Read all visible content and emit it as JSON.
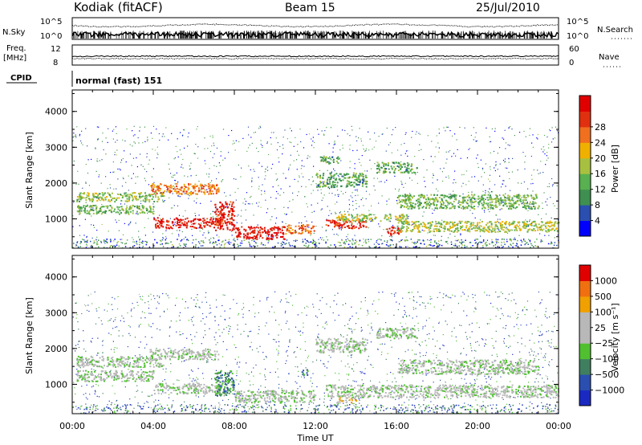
{
  "header": {
    "station": "Kodiak (fitACF)",
    "beam": "Beam 15",
    "date": "25/Jul/2010"
  },
  "top_panels": {
    "nsky_label": "N.Sky",
    "nsky_ticks": [
      "10^5",
      "10^0"
    ],
    "nsearch_label": "N.Search",
    "nsearch_ticks": [
      "10^5",
      "10^0"
    ],
    "freq_label_1": "Freq.",
    "freq_label_2": "[MHz]",
    "freq_ticks": [
      "12",
      "8"
    ],
    "nave_label": "Nave",
    "nave_ticks": [
      "60",
      "0"
    ],
    "cpid_label": "CPID",
    "cpid_value": "normal (fast) 151"
  },
  "colors": {
    "power_scale": [
      "#0000ff",
      "#2a4fb0",
      "#3f8f50",
      "#58b050",
      "#a8c040",
      "#f0b000",
      "#f07020",
      "#e03010",
      "#e00000"
    ],
    "velocity_scale": [
      "#1a2ac0",
      "#2a4fb0",
      "#3f7f60",
      "#50c030",
      "#b8b8b8",
      "#b8b8b8",
      "#f0a000",
      "#f07010",
      "#e00000"
    ]
  },
  "chart_data": [
    {
      "type": "heatmap",
      "panel": "power",
      "ylabel": "Slant Range [km]",
      "yticks": [
        "1000",
        "2000",
        "3000",
        "4000"
      ],
      "ylim": [
        180,
        4600
      ],
      "xlim": [
        0,
        24
      ],
      "colorbar": {
        "label": "Power [dB]",
        "ticks": [
          "4",
          "8",
          "12",
          "16",
          "20",
          "24",
          "28"
        ],
        "range": [
          0,
          32
        ]
      },
      "echo_regions": [
        {
          "t0": 0.2,
          "t1": 4.5,
          "r0": 1500,
          "r1": 1750,
          "level": 0.45
        },
        {
          "t0": 0.2,
          "t1": 4.0,
          "r0": 1150,
          "r1": 1400,
          "level": 0.4
        },
        {
          "t0": 3.8,
          "t1": 7.2,
          "r0": 1700,
          "r1": 2000,
          "level": 0.7
        },
        {
          "t0": 4.0,
          "t1": 7.3,
          "r0": 750,
          "r1": 1050,
          "level": 0.9
        },
        {
          "t0": 7.0,
          "t1": 8.0,
          "r0": 700,
          "r1": 1500,
          "level": 0.9
        },
        {
          "t0": 8.0,
          "t1": 10.5,
          "r0": 450,
          "r1": 800,
          "level": 0.95
        },
        {
          "t0": 10.5,
          "t1": 12.0,
          "r0": 600,
          "r1": 850,
          "level": 0.75
        },
        {
          "t0": 12.5,
          "t1": 14.5,
          "r0": 750,
          "r1": 1000,
          "level": 0.85
        },
        {
          "t0": 13.0,
          "t1": 16.5,
          "r0": 950,
          "r1": 1150,
          "level": 0.5
        },
        {
          "t0": 15.5,
          "t1": 16.2,
          "r0": 550,
          "r1": 800,
          "level": 0.9
        },
        {
          "t0": 16.0,
          "t1": 24.0,
          "r0": 650,
          "r1": 950,
          "level": 0.5
        },
        {
          "t0": 16.0,
          "t1": 23.0,
          "r0": 1300,
          "r1": 1700,
          "level": 0.4
        },
        {
          "t0": 12.0,
          "t1": 14.5,
          "r0": 1900,
          "r1": 2300,
          "level": 0.35
        },
        {
          "t0": 15.0,
          "t1": 17.0,
          "r0": 2300,
          "r1": 2600,
          "level": 0.35
        },
        {
          "t0": 12.2,
          "t1": 13.2,
          "r0": 2550,
          "r1": 2750,
          "level": 0.35
        }
      ]
    },
    {
      "type": "heatmap",
      "panel": "velocity",
      "ylabel": "Slant Range [km]",
      "yticks": [
        "1000",
        "2000",
        "3000",
        "4000"
      ],
      "ylim": [
        180,
        4600
      ],
      "xlim": [
        0,
        24
      ],
      "xticks": [
        "00:00",
        "04:00",
        "08:00",
        "12:00",
        "16:00",
        "20:00",
        "00:00"
      ],
      "xlabel": "Time UT",
      "colorbar": {
        "label": "Velocity [m s⁻¹]",
        "ticks": [
          "1000",
          "500",
          "100",
          "25",
          "−25",
          "−100",
          "−500",
          "−1000"
        ]
      },
      "echo_regions": [
        {
          "t0": 0.2,
          "t1": 4.5,
          "r0": 1500,
          "r1": 1800,
          "level": 0.5
        },
        {
          "t0": 0.2,
          "t1": 4.0,
          "r0": 1100,
          "r1": 1400,
          "level": 0.5
        },
        {
          "t0": 3.8,
          "t1": 7.2,
          "r0": 1700,
          "r1": 2000,
          "level": 0.5
        },
        {
          "t0": 4.0,
          "t1": 7.3,
          "r0": 750,
          "r1": 1050,
          "level": 0.5
        },
        {
          "t0": 7.0,
          "t1": 8.0,
          "r0": 700,
          "r1": 1400,
          "level": 0.3
        },
        {
          "t0": 8.0,
          "t1": 12.0,
          "r0": 500,
          "r1": 850,
          "level": 0.5
        },
        {
          "t0": 12.5,
          "t1": 24.0,
          "r0": 650,
          "r1": 1000,
          "level": 0.5
        },
        {
          "t0": 16.0,
          "t1": 23.0,
          "r0": 1300,
          "r1": 1700,
          "level": 0.5
        },
        {
          "t0": 12.0,
          "t1": 14.5,
          "r0": 1900,
          "r1": 2300,
          "level": 0.5
        },
        {
          "t0": 15.0,
          "t1": 17.0,
          "r0": 2300,
          "r1": 2600,
          "level": 0.5
        },
        {
          "t0": 11.3,
          "t1": 11.6,
          "r0": 1250,
          "r1": 1450,
          "level": 0.25
        },
        {
          "t0": 13.0,
          "t1": 14.0,
          "r0": 500,
          "r1": 650,
          "level": 0.65
        }
      ]
    }
  ]
}
